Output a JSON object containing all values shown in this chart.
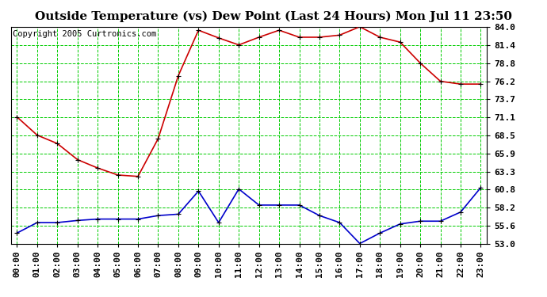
{
  "title": "Outside Temperature (vs) Dew Point (Last 24 Hours) Mon Jul 11 23:50",
  "copyright": "Copyright 2005 Curtronics.com",
  "hours": [
    "00:00",
    "01:00",
    "02:00",
    "03:00",
    "04:00",
    "05:00",
    "06:00",
    "07:00",
    "08:00",
    "09:00",
    "10:00",
    "11:00",
    "12:00",
    "13:00",
    "14:00",
    "15:00",
    "16:00",
    "17:00",
    "18:00",
    "19:00",
    "20:00",
    "21:00",
    "22:00",
    "23:00"
  ],
  "temp": [
    71.1,
    68.5,
    67.3,
    65.0,
    63.8,
    62.8,
    62.6,
    68.0,
    77.0,
    83.5,
    82.4,
    81.4,
    82.5,
    83.5,
    82.5,
    82.5,
    82.8,
    84.0,
    82.5,
    81.8,
    78.8,
    76.2,
    75.8,
    75.8
  ],
  "dew": [
    54.5,
    56.0,
    56.0,
    56.3,
    56.5,
    56.5,
    56.5,
    57.0,
    57.2,
    60.5,
    56.0,
    60.8,
    58.5,
    58.5,
    58.5,
    57.0,
    56.0,
    53.0,
    54.5,
    55.8,
    56.2,
    56.2,
    57.5,
    61.0
  ],
  "temp_color": "#cc0000",
  "dew_color": "#0000cc",
  "bg_color": "#ffffff",
  "plot_bg": "#ffffff",
  "grid_color": "#00cc00",
  "ymin": 53.0,
  "ymax": 84.0,
  "yticks": [
    53.0,
    55.6,
    58.2,
    60.8,
    63.3,
    65.9,
    68.5,
    71.1,
    73.7,
    76.2,
    78.8,
    81.4,
    84.0
  ],
  "title_fontsize": 11,
  "copyright_fontsize": 7.5,
  "tick_fontsize": 8
}
